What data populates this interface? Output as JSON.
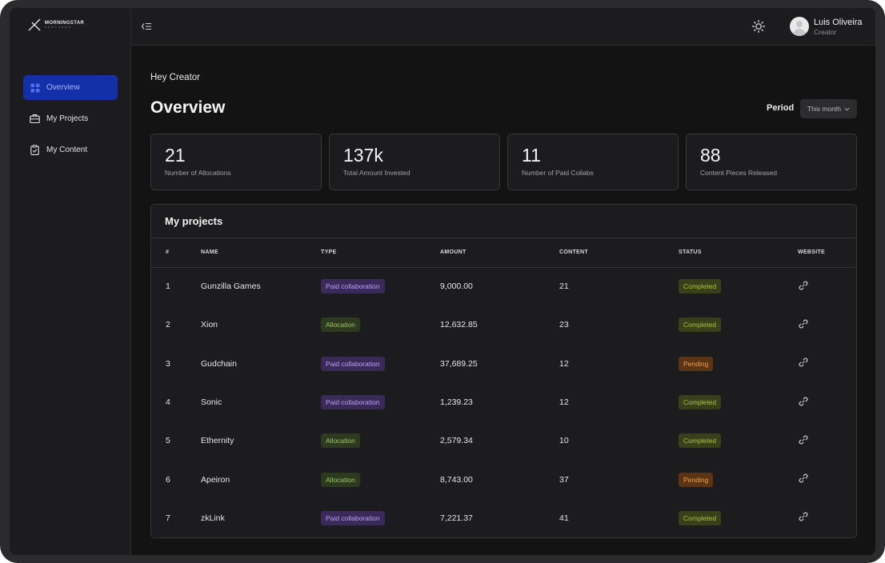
{
  "brand": {
    "name": "MORNINGSTAR",
    "sub": "VENTURES"
  },
  "sidebar": {
    "items": [
      {
        "label": "Overview",
        "icon": "grid-icon",
        "active": true
      },
      {
        "label": "My Projects",
        "icon": "briefcase-icon",
        "active": false
      },
      {
        "label": "My Content",
        "icon": "clipboard-check-icon",
        "active": false
      }
    ]
  },
  "header": {
    "user": {
      "name": "Luis Oliveira",
      "role": "Creator"
    }
  },
  "main": {
    "greeting": "Hey Creator",
    "title": "Overview",
    "period_label": "Period",
    "period_value": "This month"
  },
  "stats": [
    {
      "value": "21",
      "label": "Number of Allocations"
    },
    {
      "value": "137k",
      "label": "Total Amount Invested"
    },
    {
      "value": "11",
      "label": "Number of Paid Collabs"
    },
    {
      "value": "88",
      "label": "Content Pieces Released"
    }
  ],
  "projects": {
    "title": "My projects",
    "columns": [
      "#",
      "NAME",
      "TYPE",
      "AMOUNT",
      "CONTENT",
      "STATUS",
      "WEBSITE"
    ],
    "rows": [
      {
        "num": "1",
        "name": "Gunzilla Games",
        "type": "Paid collaboration",
        "amount": "9,000.00",
        "content": "21",
        "status": "Completed"
      },
      {
        "num": "2",
        "name": "Xion",
        "type": "Allocation",
        "amount": "12,632.85",
        "content": "23",
        "status": "Completed"
      },
      {
        "num": "3",
        "name": "Gudchain",
        "type": "Paid collaboration",
        "amount": "37,689.25",
        "content": "12",
        "status": "Pending"
      },
      {
        "num": "4",
        "name": "Sonic",
        "type": "Paid collaboration",
        "amount": "1,239.23",
        "content": "12",
        "status": "Completed"
      },
      {
        "num": "5",
        "name": "Ethernity",
        "type": "Allocation",
        "amount": "2,579.34",
        "content": "10",
        "status": "Completed"
      },
      {
        "num": "6",
        "name": "Apeiron",
        "type": "Allocation",
        "amount": "8,743.00",
        "content": "37",
        "status": "Pending"
      },
      {
        "num": "7",
        "name": "zkLink",
        "type": "Paid collaboration",
        "amount": "7,221.37",
        "content": "41",
        "status": "Completed"
      }
    ]
  },
  "colors": {
    "accent": "#1330a8",
    "paid": "#b9a2f0",
    "allocation": "#9fc36c",
    "completed": "#a7c043",
    "pending": "#f0a04a"
  }
}
